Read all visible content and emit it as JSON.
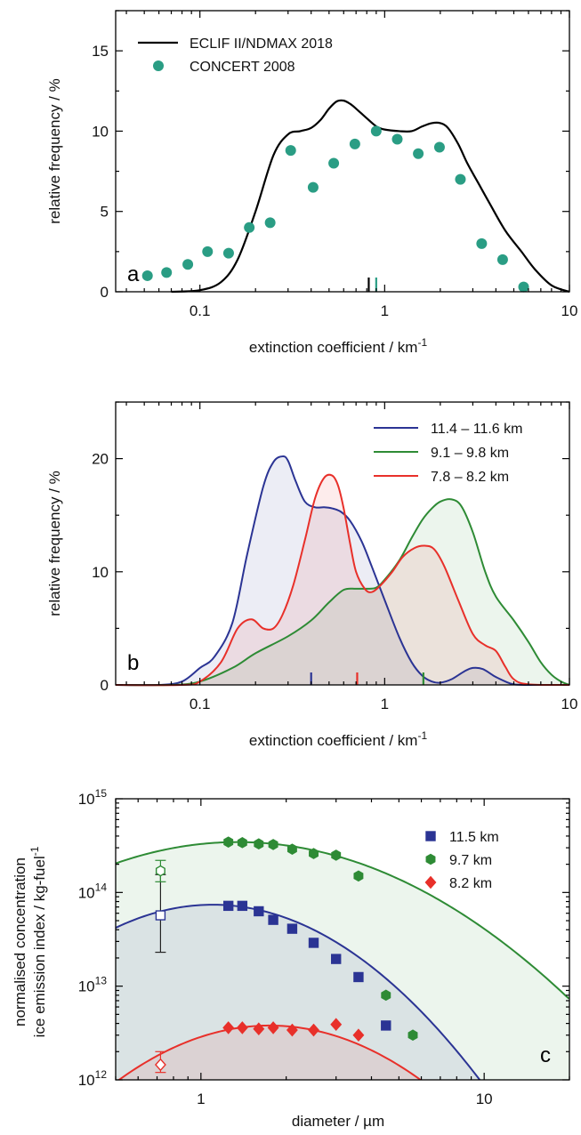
{
  "chart_data": [
    {
      "panel": "a",
      "type": "line",
      "xlabel": "extinction coefficient / km",
      "xlabel_sup": "-1",
      "ylabel": "relative frequency / %",
      "xscale": "log",
      "xlim": [
        0.035,
        10
      ],
      "ylim": [
        0,
        17.5
      ],
      "xticks": [
        "0.1",
        "1",
        "10"
      ],
      "yticks": [
        "0",
        "5",
        "10",
        "15"
      ],
      "legend_position": "top-left",
      "colors": {
        "line": "#000000",
        "dots": "#2a9d84"
      },
      "series": [
        {
          "name": "ECLIF II/NDMAX 2018",
          "style": "line",
          "x": [
            0.07,
            0.1,
            0.13,
            0.16,
            0.2,
            0.25,
            0.3,
            0.35,
            0.4,
            0.45,
            0.5,
            0.55,
            0.6,
            0.65,
            0.7,
            0.8,
            0.9,
            1.0,
            1.2,
            1.4,
            1.6,
            1.8,
            2.0,
            2.2,
            2.5,
            2.8,
            3.2,
            3.7,
            4.5,
            5.5,
            6.5,
            8.0,
            10.0
          ],
          "y": [
            0,
            0.1,
            0.6,
            2.0,
            5.0,
            8.5,
            9.8,
            10.0,
            10.2,
            10.7,
            11.4,
            11.85,
            11.9,
            11.7,
            11.4,
            10.8,
            10.3,
            10.1,
            10.0,
            10.0,
            10.3,
            10.5,
            10.5,
            10.2,
            9.2,
            8.0,
            6.8,
            5.5,
            3.8,
            2.5,
            1.4,
            0.4,
            0
          ]
        },
        {
          "name": "CONCERT 2008",
          "style": "points",
          "x": [
            0.052,
            0.066,
            0.086,
            0.11,
            0.143,
            0.185,
            0.24,
            0.31,
            0.41,
            0.53,
            0.69,
            0.9,
            1.17,
            1.52,
            1.98,
            2.57,
            3.35,
            4.35,
            5.65
          ],
          "y": [
            1.0,
            1.2,
            1.7,
            2.5,
            2.4,
            4.0,
            4.3,
            8.8,
            6.5,
            8.0,
            9.2,
            10.0,
            9.5,
            8.6,
            9.0,
            7.0,
            3.0,
            2.0,
            0.3
          ]
        }
      ],
      "markers": [
        {
          "series": "ECLIF II/NDMAX 2018",
          "x": 0.82
        },
        {
          "series": "CONCERT 2008",
          "x": 0.9
        }
      ]
    },
    {
      "panel": "b",
      "type": "area",
      "xlabel": "extinction coefficient / km",
      "xlabel_sup": "-1",
      "ylabel": "relative frequency / %",
      "xscale": "log",
      "xlim": [
        0.035,
        10
      ],
      "ylim": [
        0,
        25
      ],
      "xticks": [
        "0.1",
        "1",
        "10"
      ],
      "yticks": [
        "0",
        "10",
        "20"
      ],
      "legend_position": "top-right",
      "series": [
        {
          "name": "11.4 – 11.6 km",
          "color": "#2b3494",
          "x": [
            0.035,
            0.06,
            0.08,
            0.1,
            0.12,
            0.15,
            0.18,
            0.22,
            0.25,
            0.28,
            0.3,
            0.33,
            0.37,
            0.42,
            0.47,
            0.52,
            0.58,
            0.65,
            0.75,
            0.85,
            1.0,
            1.2,
            1.4,
            1.6,
            1.8,
            2.0,
            2.3,
            2.7,
            3.0,
            3.4,
            3.9,
            4.5,
            5.0,
            6.0,
            10.0
          ],
          "y": [
            0,
            0,
            0.3,
            1.5,
            2.5,
            5.5,
            11.5,
            17.5,
            19.7,
            20.2,
            19.8,
            18.0,
            16.2,
            15.7,
            15.7,
            15.6,
            15.3,
            14.5,
            12.7,
            10.5,
            7.5,
            4.2,
            2.0,
            0.8,
            0.3,
            0.2,
            0.5,
            1.2,
            1.5,
            1.4,
            0.8,
            0.3,
            0.05,
            0,
            0
          ]
        },
        {
          "name": "9.1 – 9.8 km",
          "color": "#2e8b35",
          "x": [
            0.035,
            0.07,
            0.1,
            0.15,
            0.2,
            0.3,
            0.4,
            0.5,
            0.6,
            0.7,
            0.8,
            0.9,
            1.0,
            1.2,
            1.4,
            1.6,
            1.8,
            2.0,
            2.3,
            2.6,
            3.0,
            3.5,
            4.0,
            5.0,
            6.0,
            7.0,
            8.0,
            9.0,
            10.0
          ],
          "y": [
            0,
            0,
            0.3,
            1.5,
            2.8,
            4.3,
            5.7,
            7.3,
            8.4,
            8.5,
            8.5,
            8.6,
            9.3,
            11.0,
            13.0,
            14.6,
            15.6,
            16.2,
            16.4,
            15.8,
            13.5,
            10.0,
            7.8,
            5.7,
            3.8,
            2.0,
            0.9,
            0.3,
            0
          ]
        },
        {
          "name": "7.8 – 8.2 km",
          "color": "#e8302a",
          "x": [
            0.035,
            0.08,
            0.1,
            0.13,
            0.16,
            0.19,
            0.22,
            0.25,
            0.28,
            0.32,
            0.37,
            0.42,
            0.47,
            0.52,
            0.56,
            0.6,
            0.65,
            0.7,
            0.78,
            0.85,
            0.95,
            1.1,
            1.25,
            1.45,
            1.65,
            1.85,
            2.1,
            2.5,
            3.0,
            3.5,
            4.0,
            4.5,
            5.0,
            6.0,
            10.0
          ],
          "y": [
            0,
            0,
            0.3,
            2.0,
            5.0,
            5.8,
            5.0,
            5.0,
            6.2,
            8.8,
            12.8,
            16.5,
            18.3,
            18.5,
            17.6,
            15.6,
            12.5,
            10.0,
            8.5,
            8.2,
            8.8,
            10.0,
            11.3,
            12.1,
            12.3,
            12.0,
            10.5,
            7.5,
            4.5,
            3.5,
            3.0,
            1.6,
            0.5,
            0.05,
            0
          ]
        }
      ],
      "markers": [
        {
          "series": "11.4 – 11.6 km",
          "x": 0.4
        },
        {
          "series": "7.8 – 8.2 km",
          "x": 0.71
        },
        {
          "series": "9.1 – 9.8 km",
          "x": 1.62
        }
      ]
    },
    {
      "panel": "c",
      "type": "scatter",
      "xlabel": "diameter / µm",
      "ylabel_line1": "normalised concentration",
      "ylabel_line2": "ice emission index / kg-fuel",
      "ylabel_sup": "-1",
      "xscale": "log",
      "yscale": "log",
      "xlim": [
        0.5,
        20
      ],
      "ylim": [
        1000000000000.0,
        1000000000000000.0
      ],
      "xticks": [
        "1",
        "10"
      ],
      "yticks": [
        {
          "base": "10",
          "exp": "12"
        },
        {
          "base": "10",
          "exp": "13"
        },
        {
          "base": "10",
          "exp": "14"
        },
        {
          "base": "10",
          "exp": "15"
        }
      ],
      "legend_position": "top-right",
      "series": [
        {
          "name": "11.5 km",
          "color": "#2b3494",
          "marker": "square",
          "x": [
            1.25,
            1.4,
            1.6,
            1.8,
            2.1,
            2.5,
            3.0,
            3.6,
            4.5
          ],
          "y": [
            72000000000000.0,
            72000000000000.0,
            63000000000000.0,
            51000000000000.0,
            41000000000000.0,
            29000000000000.0,
            19500000000000.0,
            12500000000000.0,
            3800000000000.0
          ],
          "fit": {
            "peak": 74000000000000.0,
            "mode": 1.1,
            "sigma": 0.74
          },
          "open_point": {
            "x": 0.72,
            "y": 57000000000000.0,
            "err_lo": 23000000000000.0,
            "err_hi": 155000000000000.0
          }
        },
        {
          "name": "9.7 km",
          "color": "#2e8b35",
          "marker": "hexagon",
          "x": [
            1.25,
            1.4,
            1.6,
            1.8,
            2.1,
            2.5,
            3.0,
            3.6,
            4.5,
            5.6
          ],
          "y": [
            345000000000000.0,
            340000000000000.0,
            330000000000000.0,
            325000000000000.0,
            290000000000000.0,
            260000000000000.0,
            250000000000000.0,
            150000000000000.0,
            8000000000000.0,
            3000000000000.0
          ],
          "fit": {
            "peak": 345000000000000.0,
            "mode": 1.35,
            "sigma": 0.97
          },
          "open_point": {
            "x": 0.72,
            "y": 170000000000000.0,
            "err_lo": 130000000000000.0,
            "err_hi": 220000000000000.0
          }
        },
        {
          "name": "8.2 km",
          "color": "#e8302a",
          "marker": "diamond",
          "x": [
            1.25,
            1.4,
            1.6,
            1.8,
            2.1,
            2.5,
            3.0,
            3.6
          ],
          "y": [
            3600000000000.0,
            3600000000000.0,
            3500000000000.0,
            3600000000000.0,
            3400000000000.0,
            3400000000000.0,
            3900000000000.0,
            3000000000000.0
          ],
          "fit": {
            "peak": 3800000000000.0,
            "mode": 1.75,
            "sigma": 0.75
          },
          "open_point": {
            "x": 0.72,
            "y": 1450000000000.0,
            "err_lo": 1200000000000.0,
            "err_hi": 2000000000000.0
          }
        }
      ]
    }
  ],
  "panel_labels": {
    "a": "a",
    "b": "b",
    "c": "c"
  }
}
